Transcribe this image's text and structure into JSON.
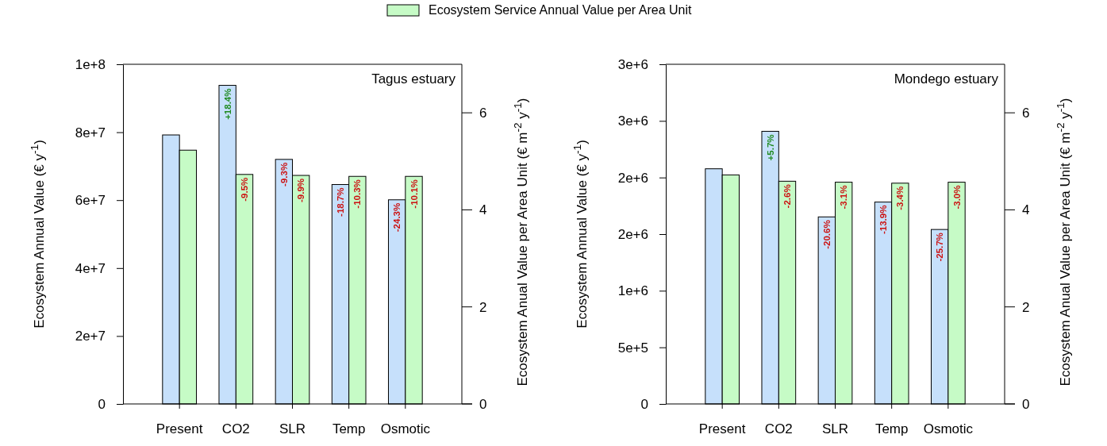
{
  "chart_data": [
    {
      "type": "bar",
      "title": "Tagus estuary",
      "categories": [
        "Present",
        "CO2",
        "SLR",
        "Temp",
        "Osmotic"
      ],
      "ylabel": "Ecosystem Annual Value (€ y$^{-1}$)",
      "y2label": "Ecosystem Anual Value per Area Unit (€ m$^{-2}$ y$^{-1}$)",
      "ylim": [
        0,
        100000000
      ],
      "yticks": [
        0,
        {
          "value": 20000000,
          "label": "2e+7"
        },
        {
          "value": 40000000,
          "label": "4e+7"
        },
        {
          "value": 60000000,
          "label": "6e+7"
        },
        {
          "value": 80000000,
          "label": "8e+7"
        },
        {
          "value": 100000000,
          "label": "1e+8"
        }
      ],
      "y2lim": [
        0,
        7
      ],
      "y2ticks": [
        0,
        2,
        4,
        6
      ],
      "legend": "top",
      "series": [
        {
          "color": "#c6e0fb",
          "values": [
            79200000,
            93800000,
            72000000,
            64600000,
            60100000
          ]
        },
        {
          "name": "Ecosystem Service Annual Value per Area Unit",
          "color": "#c6fbc6",
          "axis": "y2",
          "values": [
            5.23,
            4.73,
            4.71,
            4.69,
            4.69
          ]
        }
      ],
      "annotations": [
        {
          "text": "+18.4%",
          "x": "CO2",
          "y": 93800000
        },
        {
          "text": "-9.3%",
          "x": "SLR",
          "y": 72000000
        },
        {
          "text": "-18.7%",
          "x": "Temp",
          "y": 64600000
        },
        {
          "text": "-24.3%",
          "x": "Osmotic",
          "y": 60100000
        },
        {
          "text": "-9.5%",
          "x": "CO2",
          "y": 67600000
        },
        {
          "text": "-9.9%",
          "x": "SLR",
          "y": 67300000
        },
        {
          "text": "-10.3%",
          "x": "Temp",
          "y": 67000000
        },
        {
          "text": "-10.1%",
          "x": "Osmotic",
          "y": 67000000
        }
      ]
    },
    {
      "type": "bar",
      "title": "Mondego estuary",
      "categories": [
        "Present",
        "CO2",
        "SLR",
        "Temp",
        "Osmotic"
      ],
      "ylabel": "Ecosystem Annual Value (€ y$^{-1}$)",
      "y2label": "Ecosystem Anual Value per Area Unit (€ m$^{-2}$ y$^{-1}$)",
      "ylim": [
        0,
        3000000
      ],
      "yticks": [
        0,
        {
          "value": 500000,
          "label": "5e+5"
        },
        {
          "value": 1000000,
          "label": "1e+6"
        },
        {
          "value": 1500000,
          "label": "2e+6"
        },
        {
          "value": 2000000,
          "label": "2e+6"
        },
        {
          "value": 2500000,
          "label": "3e+6"
        },
        {
          "value": 3000000,
          "label": "3e+6"
        }
      ],
      "y2lim": [
        0,
        7
      ],
      "y2ticks": [
        0,
        2,
        4,
        6
      ],
      "series": [
        {
          "color": "#c6e0fb",
          "values": [
            2077000,
            2408000,
            1652000,
            1783000,
            1541000
          ]
        },
        {
          "color": "#c6fbc6",
          "axis": "y2",
          "values": [
            4.72,
            4.59,
            4.57,
            4.55,
            4.57
          ]
        }
      ],
      "annotations": [
        {
          "text": "+5.7%",
          "x": "CO2",
          "y": 2408000
        },
        {
          "text": "-20.6%",
          "x": "SLR",
          "y": 1652000
        },
        {
          "text": "-13.9%",
          "x": "Temp",
          "y": 1783000
        },
        {
          "text": "-25.7%",
          "x": "Osmotic",
          "y": 1541000
        },
        {
          "text": "-2.6%",
          "x": "CO2",
          "y": 1967000
        },
        {
          "text": "-3.1%",
          "x": "SLR",
          "y": 1959000
        },
        {
          "text": "-3.4%",
          "x": "Temp",
          "y": 1950000
        },
        {
          "text": "-3.0%",
          "x": "Osmotic",
          "y": 1959000
        }
      ]
    }
  ]
}
